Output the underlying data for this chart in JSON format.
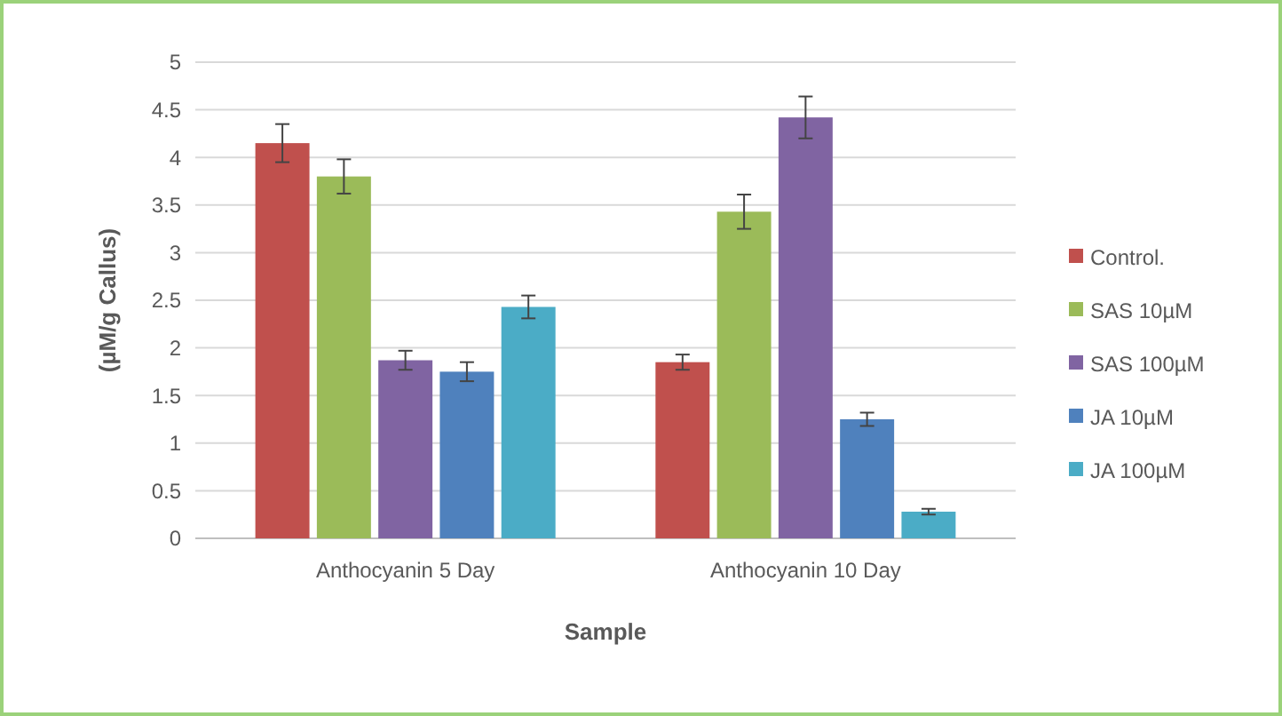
{
  "chart_data": {
    "type": "bar",
    "xlabel": "Sample",
    "ylabel": "(µM/g Callus)",
    "categories": [
      "Anthocyanin 5 Day",
      "Anthocyanin 10 Day"
    ],
    "series": [
      {
        "name": "Control.",
        "color": "#c0504d",
        "values": [
          4.15,
          1.85
        ],
        "errors": [
          0.2,
          0.08
        ]
      },
      {
        "name": "SAS  10µM",
        "color": "#9bbb59",
        "values": [
          3.8,
          3.43
        ],
        "errors": [
          0.18,
          0.18
        ]
      },
      {
        "name": "SAS 100µM",
        "color": "#8064a2",
        "values": [
          1.87,
          4.42
        ],
        "errors": [
          0.1,
          0.22
        ]
      },
      {
        "name": "JA  10µM",
        "color": "#4f81bd",
        "values": [
          1.75,
          1.25
        ],
        "errors": [
          0.1,
          0.07
        ]
      },
      {
        "name": "JA  100µM",
        "color": "#4bacc6",
        "values": [
          2.43,
          0.28
        ],
        "errors": [
          0.12,
          0.03
        ]
      }
    ],
    "ylim": [
      0,
      5
    ],
    "yticks": [
      0,
      0.5,
      1,
      1.5,
      2,
      2.5,
      3,
      3.5,
      4,
      4.5,
      5
    ],
    "grid": "y",
    "legend": "right"
  }
}
